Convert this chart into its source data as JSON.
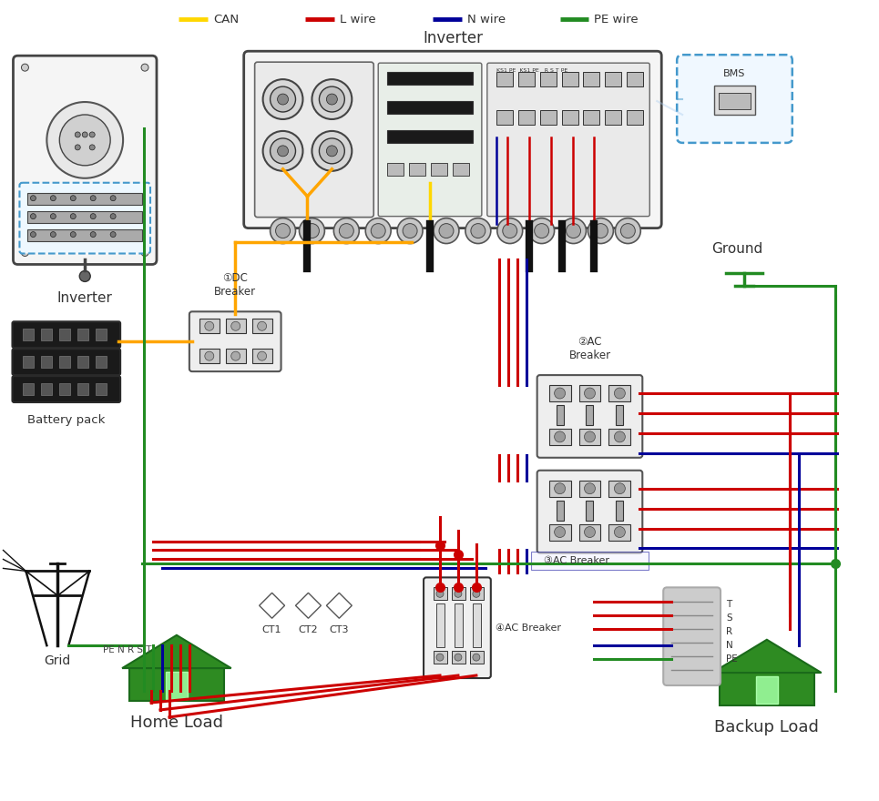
{
  "legend_items": [
    {
      "label": "CAN",
      "color": "#FFD700"
    },
    {
      "label": "L wire",
      "color": "#CC0000"
    },
    {
      "label": "N wire",
      "color": "#000099"
    },
    {
      "label": "PE wire",
      "color": "#228B22"
    }
  ],
  "bg_color": "#FFFFFF",
  "labels": {
    "inverter_left": "Inverter",
    "inverter_top": "Inverter",
    "battery": "Battery pack",
    "grid": "Grid",
    "ground": "Ground",
    "dc_breaker": "①DC\nBreaker",
    "ac_breaker2": "②AC\nBreaker",
    "ac_breaker3": "③AC Breaker",
    "ac_breaker4": "④AC Breaker",
    "home_load": "Home Load",
    "backup_load": "Backup Load",
    "bms": "BMS",
    "pe_n_r_s_t": "PE N R S T",
    "t_s_r_n_pe": "T\nS\nR\nN\nPE"
  },
  "colors": {
    "CAN": "#FFD700",
    "L": "#CC0000",
    "N": "#000099",
    "PE": "#228B22",
    "wire_orange": "#FFA500",
    "dark": "#222222",
    "med": "#555555",
    "light": "#EEEEEE",
    "box_fill": "#F2F2F2",
    "dashed_blue": "#4499CC"
  }
}
